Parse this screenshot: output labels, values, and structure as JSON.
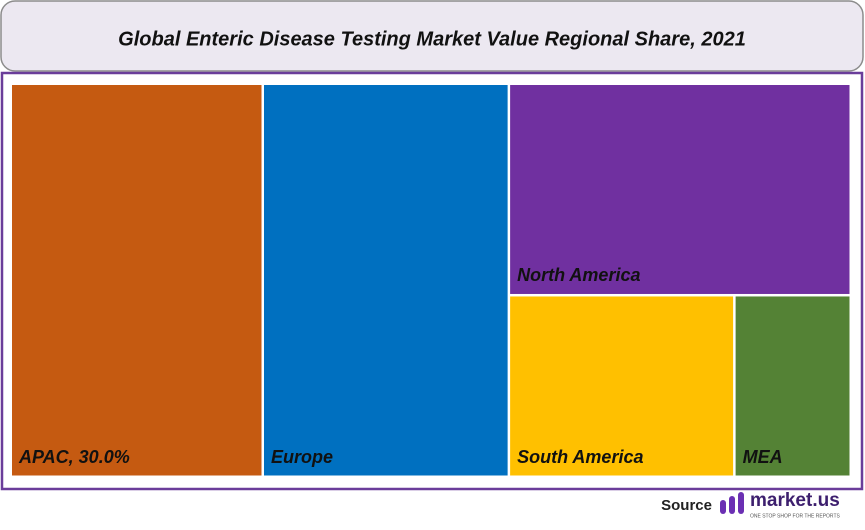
{
  "chart_data": {
    "type": "treemap",
    "title": "Global Enteric Disease Testing Market Value Regional Share, 2021",
    "categories": [
      "APAC, 30.0%",
      "Europe",
      "North America",
      "South America",
      "MEA"
    ],
    "values": [
      30.0,
      29.3,
      21.9,
      12.4,
      6.4
    ],
    "colors": [
      "#c55a11",
      "#0070c0",
      "#7030a0",
      "#ffc000",
      "#548235"
    ]
  },
  "footer": {
    "source": "Source",
    "brand": "market.us",
    "tagline": "ONE STOP SHOP FOR THE REPORTS"
  }
}
